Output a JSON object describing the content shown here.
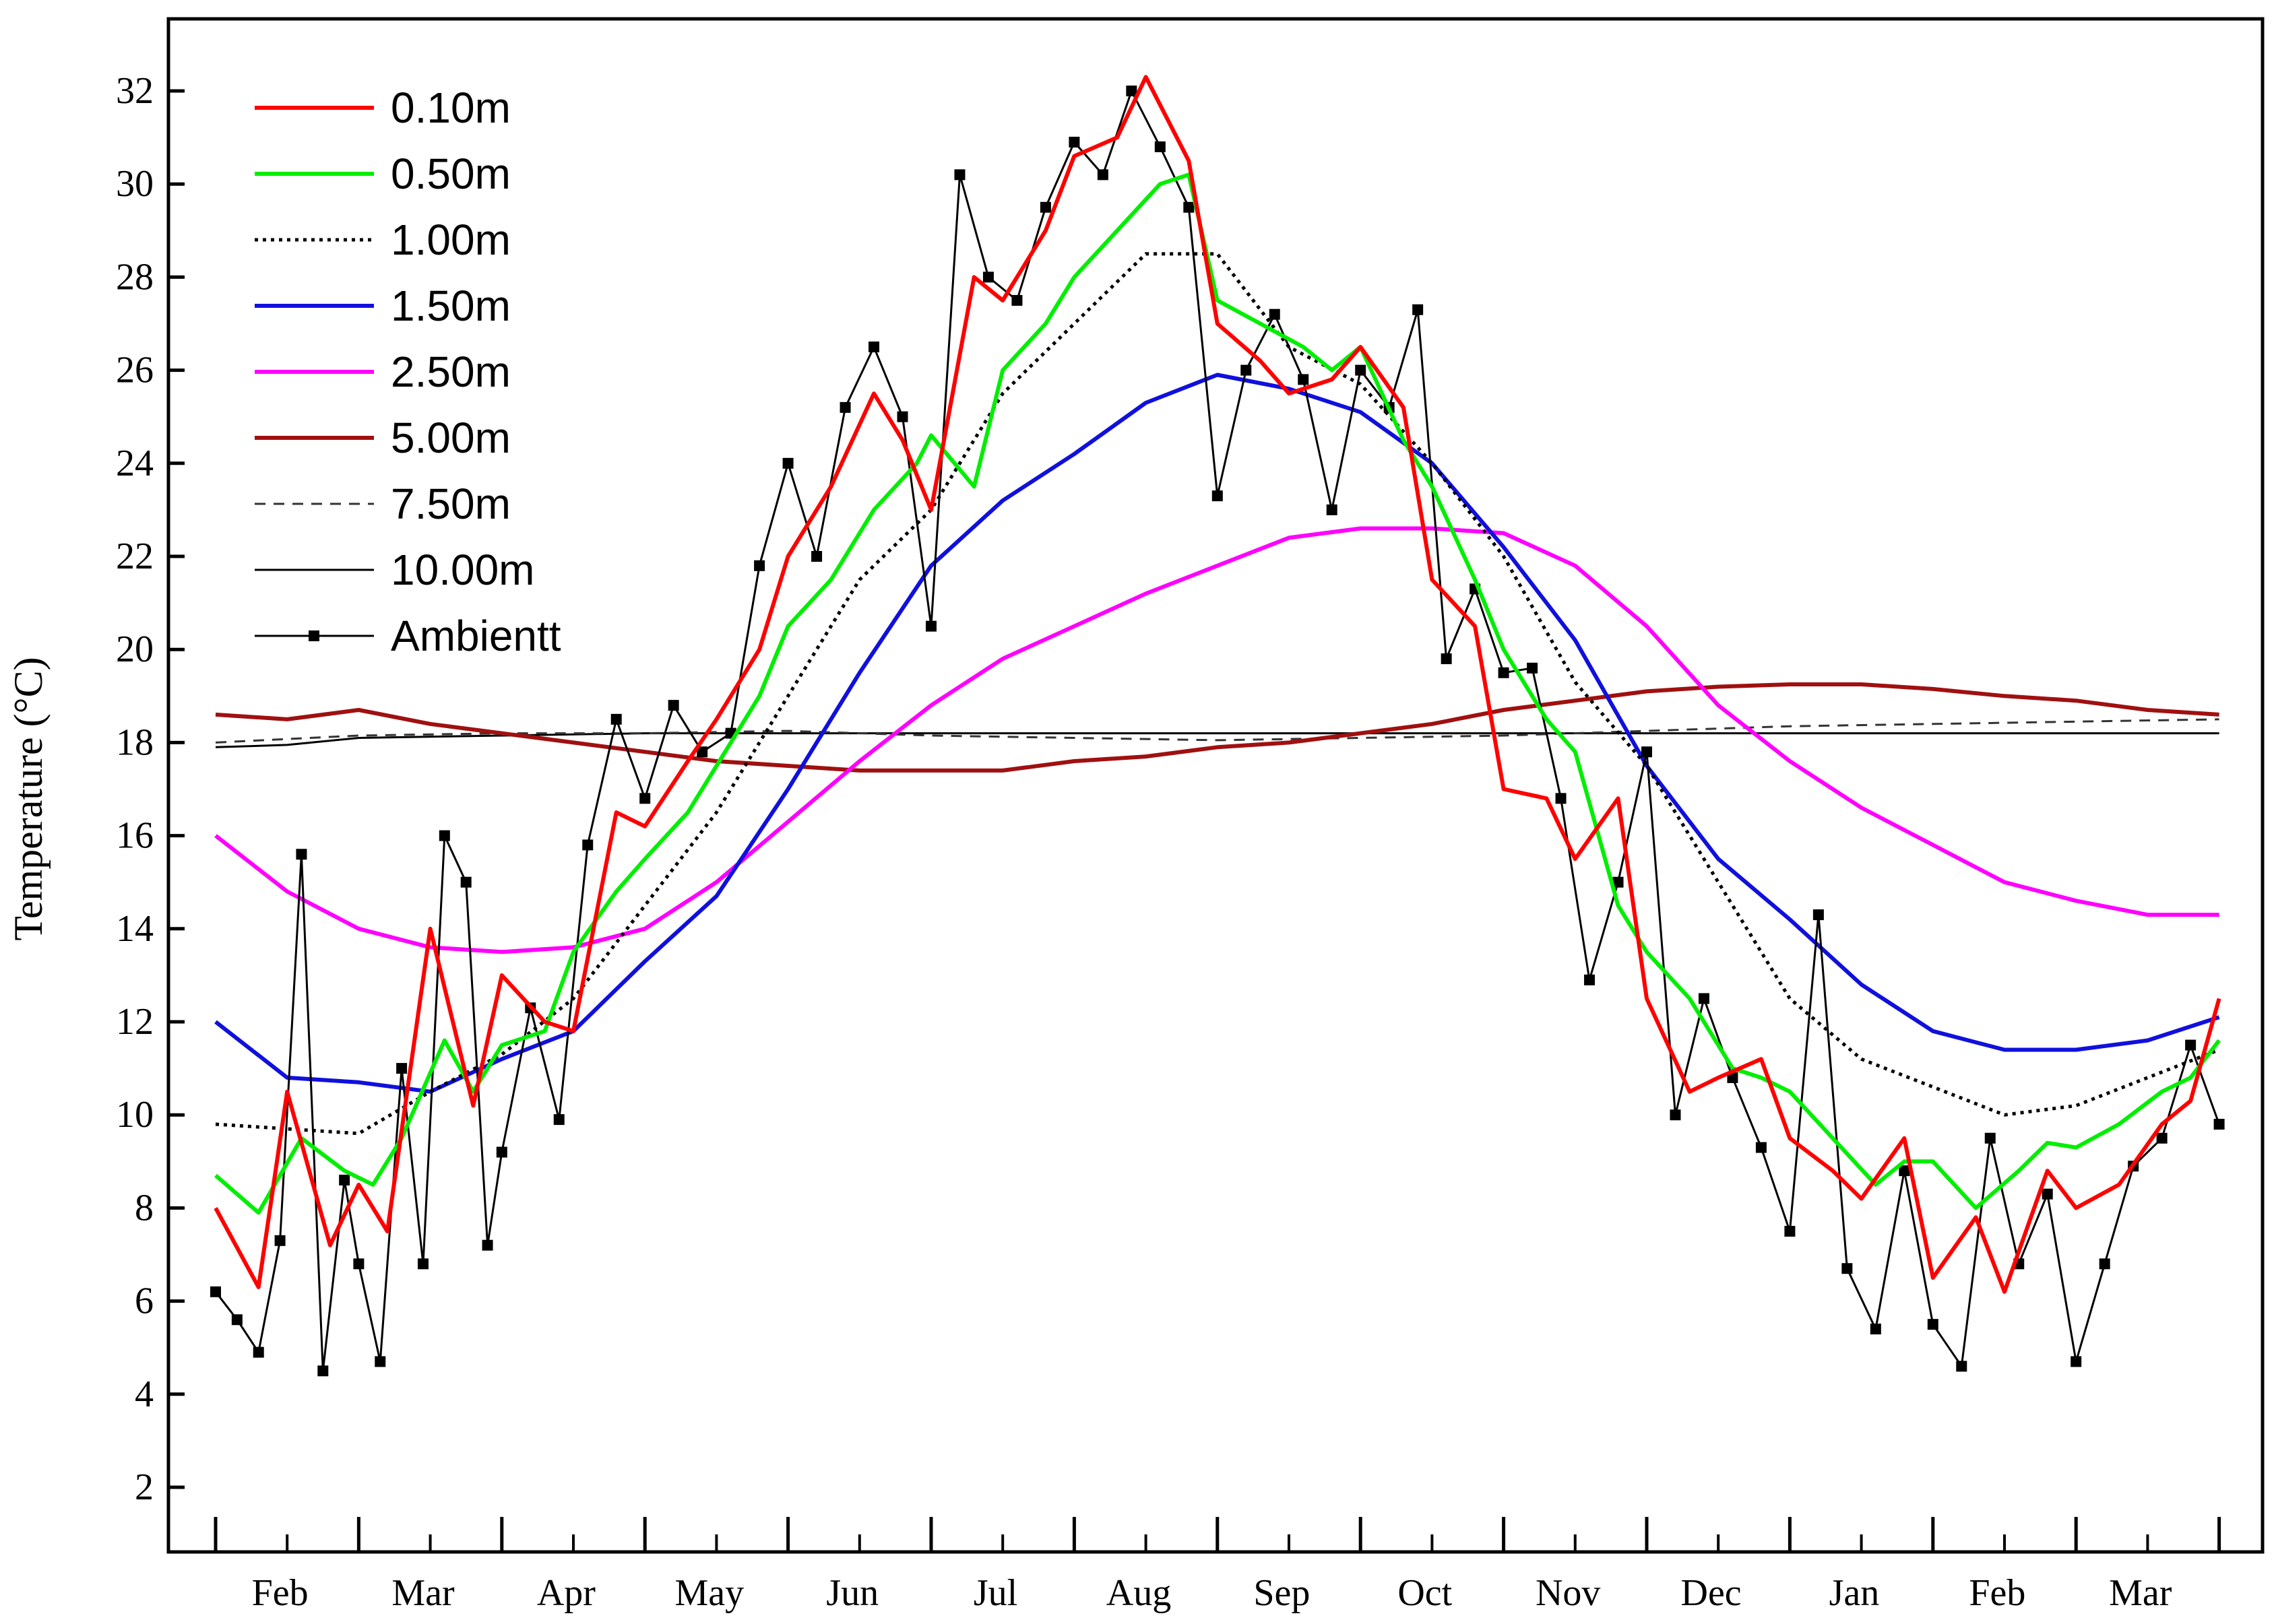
{
  "chart_data": {
    "type": "line",
    "title": "",
    "xlabel": "",
    "ylabel": "Temperature (°C)",
    "ylim": [
      0.8,
      34
    ],
    "y_ticks": [
      2,
      4,
      6,
      8,
      10,
      12,
      14,
      16,
      18,
      20,
      22,
      24,
      26,
      28,
      30,
      32
    ],
    "x_unit": "month index (0 = start of Feb, 14 = end of Mar of following year)",
    "xlim": [
      -0.2,
      14.05
    ],
    "x_tick_labels": [
      "Feb",
      "Mar",
      "Apr",
      "May",
      "Jun",
      "Jul",
      "Aug",
      "Sep",
      "Oct",
      "Nov",
      "Dec",
      "Jan",
      "Feb",
      "Mar"
    ],
    "grid": false,
    "legend_position": "top-left",
    "series": [
      {
        "name": "0.10m",
        "color": "#ff0000",
        "style": "solid",
        "x": [
          0,
          0.3,
          0.5,
          0.8,
          1.0,
          1.2,
          1.5,
          1.8,
          2.0,
          2.3,
          2.5,
          2.8,
          3.0,
          3.3,
          3.5,
          3.8,
          4.0,
          4.3,
          4.6,
          4.8,
          5.0,
          5.3,
          5.5,
          5.8,
          6.0,
          6.3,
          6.5,
          6.8,
          7.0,
          7.3,
          7.5,
          7.8,
          8.0,
          8.3,
          8.5,
          8.8,
          9.0,
          9.3,
          9.5,
          9.8,
          10.0,
          10.3,
          10.5,
          10.8,
          11.0,
          11.3,
          11.5,
          11.8,
          12.0,
          12.3,
          12.5,
          12.8,
          13.0,
          13.3,
          13.6,
          13.8,
          14.0
        ],
        "values": [
          8,
          6.3,
          10.5,
          7.2,
          8.5,
          7.5,
          14,
          10.2,
          13,
          12,
          11.8,
          16.5,
          16.2,
          17.6,
          18.5,
          20,
          22,
          23.5,
          25.5,
          24.5,
          23,
          28,
          27.5,
          29,
          30.6,
          31,
          32.3,
          30.5,
          27,
          26.2,
          25.5,
          25.8,
          26.5,
          25.2,
          21.5,
          20.5,
          17,
          16.8,
          15.5,
          16.8,
          12.5,
          10.5,
          10.8,
          11.2,
          9.5,
          8.8,
          8.2,
          9.5,
          6.5,
          7.8,
          6.2,
          8.8,
          8,
          8.5,
          9.8,
          10.3,
          12.5
        ]
      },
      {
        "name": "0.50m",
        "color": "#00ee00",
        "style": "solid",
        "x": [
          0,
          0.3,
          0.6,
          0.9,
          1.1,
          1.3,
          1.6,
          1.8,
          2.0,
          2.3,
          2.5,
          2.8,
          3.0,
          3.3,
          3.5,
          3.8,
          4.0,
          4.3,
          4.6,
          4.9,
          5.0,
          5.3,
          5.5,
          5.8,
          6.0,
          6.3,
          6.6,
          6.8,
          7.0,
          7.3,
          7.6,
          7.8,
          8.0,
          8.3,
          8.5,
          8.8,
          9.0,
          9.3,
          9.5,
          9.8,
          10.0,
          10.3,
          10.6,
          10.8,
          11.0,
          11.3,
          11.6,
          11.8,
          12.0,
          12.3,
          12.6,
          12.8,
          13.0,
          13.3,
          13.6,
          13.8,
          14.0
        ],
        "values": [
          8.7,
          7.9,
          9.5,
          8.8,
          8.5,
          9.5,
          11.6,
          10.5,
          11.5,
          11.8,
          13.5,
          14.8,
          15.5,
          16.5,
          17.5,
          19,
          20.5,
          21.5,
          23,
          24,
          24.6,
          23.5,
          26,
          27,
          28,
          29,
          30,
          30.2,
          27.5,
          27,
          26.5,
          26,
          26.5,
          24.5,
          23.5,
          21.5,
          20,
          18.5,
          17.8,
          14.5,
          13.5,
          12.5,
          11,
          10.8,
          10.5,
          9.5,
          8.5,
          9,
          9,
          8,
          8.8,
          9.4,
          9.3,
          9.8,
          10.5,
          10.8,
          11.6
        ]
      },
      {
        "name": "1.00m",
        "color": "#000000",
        "style": "dotted",
        "x": [
          0,
          0.5,
          1.0,
          1.5,
          2.0,
          2.5,
          3.0,
          3.5,
          4.0,
          4.5,
          5.0,
          5.5,
          6.0,
          6.5,
          7.0,
          7.5,
          8.0,
          8.5,
          9.0,
          9.5,
          10.0,
          10.5,
          11.0,
          11.5,
          12.0,
          12.5,
          13.0,
          13.5,
          14.0
        ],
        "values": [
          9.8,
          9.7,
          9.6,
          10.5,
          11.3,
          12.5,
          14.5,
          16.5,
          19,
          21.5,
          23,
          25.5,
          27,
          28.5,
          28.5,
          26.5,
          25.7,
          24,
          22,
          19.3,
          17.5,
          15,
          12.5,
          11.2,
          10.6,
          10,
          10.2,
          10.8,
          11.4
        ]
      },
      {
        "name": "1.50m",
        "color": "#1010dd",
        "style": "solid",
        "x": [
          0,
          0.5,
          1.0,
          1.5,
          2.0,
          2.5,
          3.0,
          3.5,
          4.0,
          4.5,
          5.0,
          5.5,
          6.0,
          6.5,
          7.0,
          7.5,
          8.0,
          8.5,
          9.0,
          9.5,
          10.0,
          10.5,
          11.0,
          11.5,
          12.0,
          12.5,
          13.0,
          13.5,
          14.0
        ],
        "values": [
          12,
          10.8,
          10.7,
          10.5,
          11.2,
          11.8,
          13.3,
          14.7,
          17,
          19.5,
          21.8,
          23.2,
          24.2,
          25.3,
          25.9,
          25.6,
          25.1,
          24,
          22.2,
          20.2,
          17.5,
          15.5,
          14.2,
          12.8,
          11.8,
          11.4,
          11.4,
          11.6,
          12.1
        ]
      },
      {
        "name": "2.50m",
        "color": "#ff00ff",
        "style": "solid",
        "x": [
          0,
          0.5,
          1.0,
          1.5,
          2.0,
          2.5,
          3.0,
          3.5,
          4.0,
          4.5,
          5.0,
          5.5,
          6.0,
          6.5,
          7.0,
          7.5,
          8.0,
          8.5,
          9.0,
          9.5,
          10.0,
          10.5,
          11.0,
          11.5,
          12.0,
          12.5,
          13.0,
          13.5,
          14.0
        ],
        "values": [
          16,
          14.8,
          14,
          13.6,
          13.5,
          13.6,
          14,
          15,
          16.3,
          17.6,
          18.8,
          19.8,
          20.5,
          21.2,
          21.8,
          22.4,
          22.6,
          22.6,
          22.5,
          21.8,
          20.5,
          18.8,
          17.6,
          16.6,
          15.8,
          15,
          14.6,
          14.3,
          14.3
        ]
      },
      {
        "name": "5.00m",
        "color": "#a01010",
        "style": "solid",
        "x": [
          0,
          0.5,
          1.0,
          1.5,
          2.0,
          2.5,
          3.0,
          3.5,
          4.0,
          4.5,
          5.0,
          5.5,
          6.0,
          6.5,
          7.0,
          7.5,
          8.0,
          8.5,
          9.0,
          9.5,
          10.0,
          10.5,
          11.0,
          11.5,
          12.0,
          12.5,
          13.0,
          13.5,
          14.0
        ],
        "values": [
          18.6,
          18.5,
          18.7,
          18.4,
          18.2,
          18,
          17.8,
          17.6,
          17.5,
          17.4,
          17.4,
          17.4,
          17.6,
          17.7,
          17.9,
          18,
          18.2,
          18.4,
          18.7,
          18.9,
          19.1,
          19.2,
          19.25,
          19.25,
          19.15,
          19,
          18.9,
          18.7,
          18.6
        ]
      },
      {
        "name": "7.50m",
        "color": "#333333",
        "style": "dashed",
        "x": [
          0,
          1.0,
          2.0,
          3.0,
          4.0,
          5.0,
          6.0,
          7.0,
          8.0,
          9.0,
          10.0,
          11.0,
          12.0,
          13.0,
          14.0
        ],
        "values": [
          18,
          18.15,
          18.2,
          18.2,
          18.25,
          18.15,
          18.1,
          18.05,
          18.1,
          18.15,
          18.25,
          18.35,
          18.4,
          18.45,
          18.5
        ]
      },
      {
        "name": "10.00m",
        "color": "#000000",
        "style": "solid",
        "x": [
          0,
          0.5,
          1.0,
          2.0,
          3.0,
          4.0,
          5.0,
          6.0,
          7.0,
          8.0,
          9.0,
          10.0,
          11.0,
          12.0,
          13.0,
          14.0
        ],
        "values": [
          17.9,
          17.95,
          18.1,
          18.15,
          18.2,
          18.2,
          18.2,
          18.2,
          18.2,
          18.2,
          18.2,
          18.2,
          18.2,
          18.2,
          18.2,
          18.2
        ]
      },
      {
        "name": "Ambientt",
        "color": "#000000",
        "style": "solid-markers",
        "x": [
          0,
          0.15,
          0.3,
          0.45,
          0.6,
          0.75,
          0.9,
          1.0,
          1.15,
          1.3,
          1.45,
          1.6,
          1.75,
          1.9,
          2.0,
          2.2,
          2.4,
          2.6,
          2.8,
          3.0,
          3.2,
          3.4,
          3.6,
          3.8,
          4.0,
          4.2,
          4.4,
          4.6,
          4.8,
          5.0,
          5.2,
          5.4,
          5.6,
          5.8,
          6.0,
          6.2,
          6.4,
          6.6,
          6.8,
          7.0,
          7.2,
          7.4,
          7.6,
          7.8,
          8.0,
          8.2,
          8.4,
          8.6,
          8.8,
          9.0,
          9.2,
          9.4,
          9.6,
          9.8,
          10.0,
          10.2,
          10.4,
          10.6,
          10.8,
          11.0,
          11.2,
          11.4,
          11.6,
          11.8,
          12.0,
          12.2,
          12.4,
          12.6,
          12.8,
          13.0,
          13.2,
          13.4,
          13.6,
          13.8,
          14.0
        ],
        "values": [
          6.2,
          5.6,
          4.9,
          7.3,
          15.6,
          4.5,
          8.6,
          6.8,
          4.7,
          11,
          6.8,
          16,
          15,
          7.2,
          9.2,
          12.3,
          9.9,
          15.8,
          18.5,
          16.8,
          18.8,
          17.8,
          18.2,
          21.8,
          24,
          22,
          25.2,
          26.5,
          25,
          20.5,
          30.2,
          28,
          27.5,
          29.5,
          30.9,
          30.2,
          32,
          30.8,
          29.5,
          23.3,
          26,
          27.2,
          25.8,
          23,
          26,
          25.2,
          27.3,
          19.8,
          21.3,
          19.5,
          19.6,
          16.8,
          12.9,
          15,
          17.8,
          10,
          12.5,
          10.8,
          9.3,
          7.5,
          14.3,
          6.7,
          5.4,
          8.8,
          5.5,
          4.6,
          9.5,
          6.8,
          8.3,
          4.7,
          6.8,
          8.9,
          9.5,
          11.5,
          9.8
        ]
      }
    ]
  }
}
